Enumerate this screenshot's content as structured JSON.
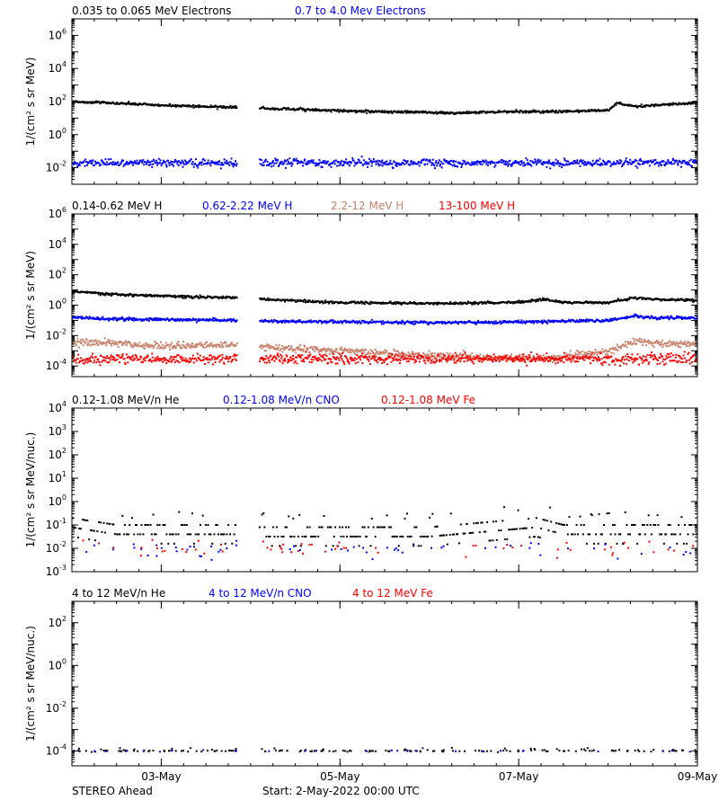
{
  "chart_data": [
    {
      "type": "scatter",
      "ylabel": "1/(cm² s sr MeV)",
      "ylim": [
        0.001,
        10000000
      ],
      "log_y": true,
      "xlim_days": [
        2.0,
        9.0
      ],
      "data_gap_days": [
        3.85,
        4.1
      ],
      "yticks": [
        {
          "exp": "-2",
          "value": 0.01
        },
        {
          "exp": "0",
          "value": 1
        },
        {
          "exp": "2",
          "value": 100
        },
        {
          "exp": "4",
          "value": 10000
        },
        {
          "exp": "6",
          "value": 1000000
        }
      ],
      "series": [
        {
          "name": "0.035 to 0.065 MeV Electrons",
          "color": "#000000",
          "x": [
            2.0,
            2.5,
            3.0,
            3.5,
            3.85,
            4.1,
            4.5,
            5.0,
            5.5,
            6.0,
            6.3,
            6.5,
            7.0,
            7.5,
            8.0,
            8.1,
            8.3,
            8.5,
            8.8,
            9.0
          ],
          "y": [
            100,
            80,
            60,
            50,
            45,
            40,
            35,
            28,
            24,
            22,
            20,
            22,
            25,
            25,
            30,
            80,
            50,
            60,
            70,
            90
          ]
        },
        {
          "name": "0.7 to 4.0 Mev Electrons",
          "color": "#0000ff",
          "x": [
            2.0,
            3.85,
            4.1,
            9.0
          ],
          "y": [
            0.02,
            0.02,
            0.02,
            0.02
          ]
        }
      ]
    },
    {
      "type": "scatter",
      "ylabel": "1/(cm² s sr MeV)",
      "ylim": [
        2e-05,
        1000000
      ],
      "log_y": true,
      "xlim_days": [
        2.0,
        9.0
      ],
      "data_gap_days": [
        3.85,
        4.1
      ],
      "yticks": [
        {
          "exp": "-4",
          "value": 0.0001
        },
        {
          "exp": "-2",
          "value": 0.01
        },
        {
          "exp": "0",
          "value": 1
        },
        {
          "exp": "2",
          "value": 100
        },
        {
          "exp": "4",
          "value": 10000
        },
        {
          "exp": "6",
          "value": 1000000
        }
      ],
      "series": [
        {
          "name": "0.14-0.62 MeV H",
          "color": "#000000",
          "x": [
            2.0,
            2.5,
            3.0,
            3.85,
            4.1,
            5.0,
            6.0,
            7.0,
            7.3,
            7.5,
            8.0,
            8.3,
            8.5,
            9.0
          ],
          "y": [
            8,
            5,
            4,
            3,
            2.5,
            1.5,
            1.3,
            1.5,
            2.5,
            1.5,
            1.5,
            3,
            2.5,
            2
          ]
        },
        {
          "name": "0.62-2.22 MeV H",
          "color": "#0000ff",
          "x": [
            2.0,
            2.5,
            3.85,
            4.1,
            5.0,
            6.0,
            7.0,
            8.0,
            8.3,
            8.5,
            9.0
          ],
          "y": [
            0.15,
            0.12,
            0.1,
            0.09,
            0.08,
            0.07,
            0.08,
            0.1,
            0.2,
            0.15,
            0.15
          ]
        },
        {
          "name": "2.2-12 MeV H",
          "color": "#c9826b",
          "x": [
            2.0,
            2.5,
            3.0,
            3.85,
            4.1,
            5.0,
            6.0,
            7.0,
            7.5,
            8.0,
            8.3,
            8.5,
            9.0
          ],
          "y": [
            0.004,
            0.003,
            0.002,
            0.0025,
            0.002,
            0.001,
            0.0005,
            0.0003,
            0.0004,
            0.001,
            0.004,
            0.003,
            0.003
          ]
        },
        {
          "name": "13-100 MeV H",
          "color": "#ff0000",
          "x": [
            2.0,
            3.85,
            4.1,
            9.0
          ],
          "y": [
            0.0003,
            0.0003,
            0.0003,
            0.0003
          ]
        }
      ]
    },
    {
      "type": "scatter",
      "ylabel": "1/(cm² s sr MeV/nuc.)",
      "ylim": [
        0.001,
        10000
      ],
      "log_y": true,
      "xlim_days": [
        2.0,
        9.0
      ],
      "data_gap_days": [
        3.85,
        4.1
      ],
      "yticks": [
        {
          "exp": "-3",
          "value": 0.001
        },
        {
          "exp": "-2",
          "value": 0.01
        },
        {
          "exp": "-1",
          "value": 0.1
        },
        {
          "exp": "0",
          "value": 1
        },
        {
          "exp": "1",
          "value": 10
        },
        {
          "exp": "2",
          "value": 100
        },
        {
          "exp": "3",
          "value": 1000
        },
        {
          "exp": "4",
          "value": 10000
        }
      ],
      "series": [
        {
          "name": "0.12-1.08 MeV/n He",
          "color": "#000000",
          "x": [
            2.0,
            2.2,
            2.5,
            3.85,
            4.1,
            6.0,
            7.2,
            7.5,
            9.0
          ],
          "y": [
            0.2,
            0.15,
            0.1,
            0.1,
            0.08,
            0.08,
            0.2,
            0.1,
            0.1
          ]
        },
        {
          "name": "0.12-1.08 MeV/n CNO",
          "color": "#0000ff",
          "x": [
            2.0,
            3.85,
            4.1,
            9.0
          ],
          "y": [
            0.01,
            0.01,
            0.01,
            0.01
          ]
        },
        {
          "name": "0.12-1.08 MeV Fe",
          "color": "#ff0000",
          "x": [
            2.0,
            3.85,
            4.1,
            9.0
          ],
          "y": [
            0.01,
            0.01,
            0.01,
            0.01
          ]
        }
      ]
    },
    {
      "type": "scatter",
      "ylabel": "1/(cm² s sr MeV/nuc.)",
      "ylim": [
        2e-05,
        1000
      ],
      "log_y": true,
      "xlim_days": [
        2.0,
        9.0
      ],
      "data_gap_days": [
        3.85,
        4.1
      ],
      "yticks": [
        {
          "exp": "-4",
          "value": 0.0001
        },
        {
          "exp": "-2",
          "value": 0.01
        },
        {
          "exp": "0",
          "value": 1
        },
        {
          "exp": "2",
          "value": 100
        }
      ],
      "series": [
        {
          "name": "4 to 12 MeV/n He",
          "color": "#000000",
          "x": [
            2.0,
            3.85,
            4.1,
            9.0
          ],
          "y": [
            0.0001,
            0.0001,
            0.0001,
            0.0001
          ]
        },
        {
          "name": "4 to 12 MeV/n CNO",
          "color": "#0000ff",
          "x": [
            2.0,
            3.85,
            4.1,
            9.0
          ],
          "y": [
            0.0001,
            0.0001,
            0.0001,
            0.0001
          ]
        },
        {
          "name": "4 to 12 MeV Fe",
          "color": "#ff0000",
          "x": [],
          "y": []
        }
      ]
    }
  ],
  "x_ticks": [
    {
      "label": "03-May",
      "day": 3.0
    },
    {
      "label": "05-May",
      "day": 5.0
    },
    {
      "label": "07-May",
      "day": 7.0
    },
    {
      "label": "09-May",
      "day": 9.0
    }
  ],
  "footer": {
    "spacecraft": "STEREO Ahead",
    "start": "Start:  2-May-2022 00:00 UTC"
  }
}
